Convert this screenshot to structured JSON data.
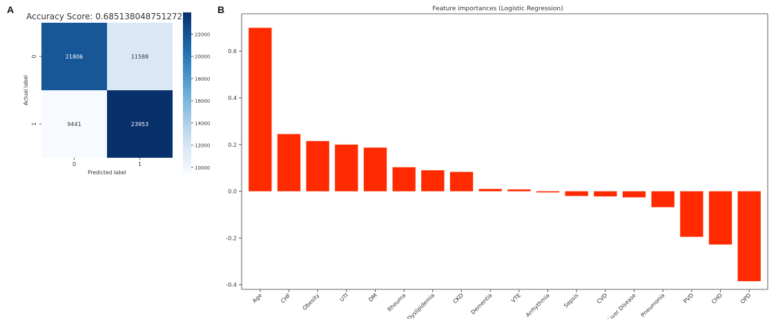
{
  "panels": {
    "a": "A",
    "b": "B"
  },
  "chart_data": [
    {
      "type": "heatmap",
      "title": "Accuracy Score: 0.6851380487512727",
      "xlabel": "Predicted label",
      "ylabel": "Actual label",
      "x_categories": [
        "0",
        "1"
      ],
      "y_categories": [
        "0",
        "1"
      ],
      "values": [
        [
          21806,
          11588
        ],
        [
          9441,
          23953
        ]
      ],
      "colorscale": "Blues",
      "colorbar": {
        "range": [
          9441,
          23953
        ],
        "ticks": [
          10000,
          12000,
          14000,
          16000,
          18000,
          20000,
          22000
        ]
      },
      "grid": false
    },
    {
      "type": "bar",
      "title": "Feature importances (Logistic Regression)",
      "categories": [
        "Age",
        "CHF",
        "Obesity",
        "UTI",
        "DM",
        "Rheuma",
        "Dyslipidemia",
        "CKD",
        "Dementia",
        "VTE",
        "Arrhythmia",
        "Sepsis",
        "CVD",
        "Liver Disease",
        "Pneumonia",
        "PVD",
        "CHD",
        "OPD"
      ],
      "values": [
        0.7,
        0.245,
        0.215,
        0.2,
        0.187,
        0.103,
        0.09,
        0.083,
        0.01,
        0.008,
        -0.005,
        -0.02,
        -0.022,
        -0.026,
        -0.068,
        -0.195,
        -0.228,
        -0.385
      ],
      "ylim": [
        -0.42,
        0.76
      ],
      "yticks": [
        -0.4,
        -0.2,
        0.0,
        0.2,
        0.4,
        0.6
      ],
      "bar_color": "#ff2a00",
      "grid": false
    }
  ]
}
